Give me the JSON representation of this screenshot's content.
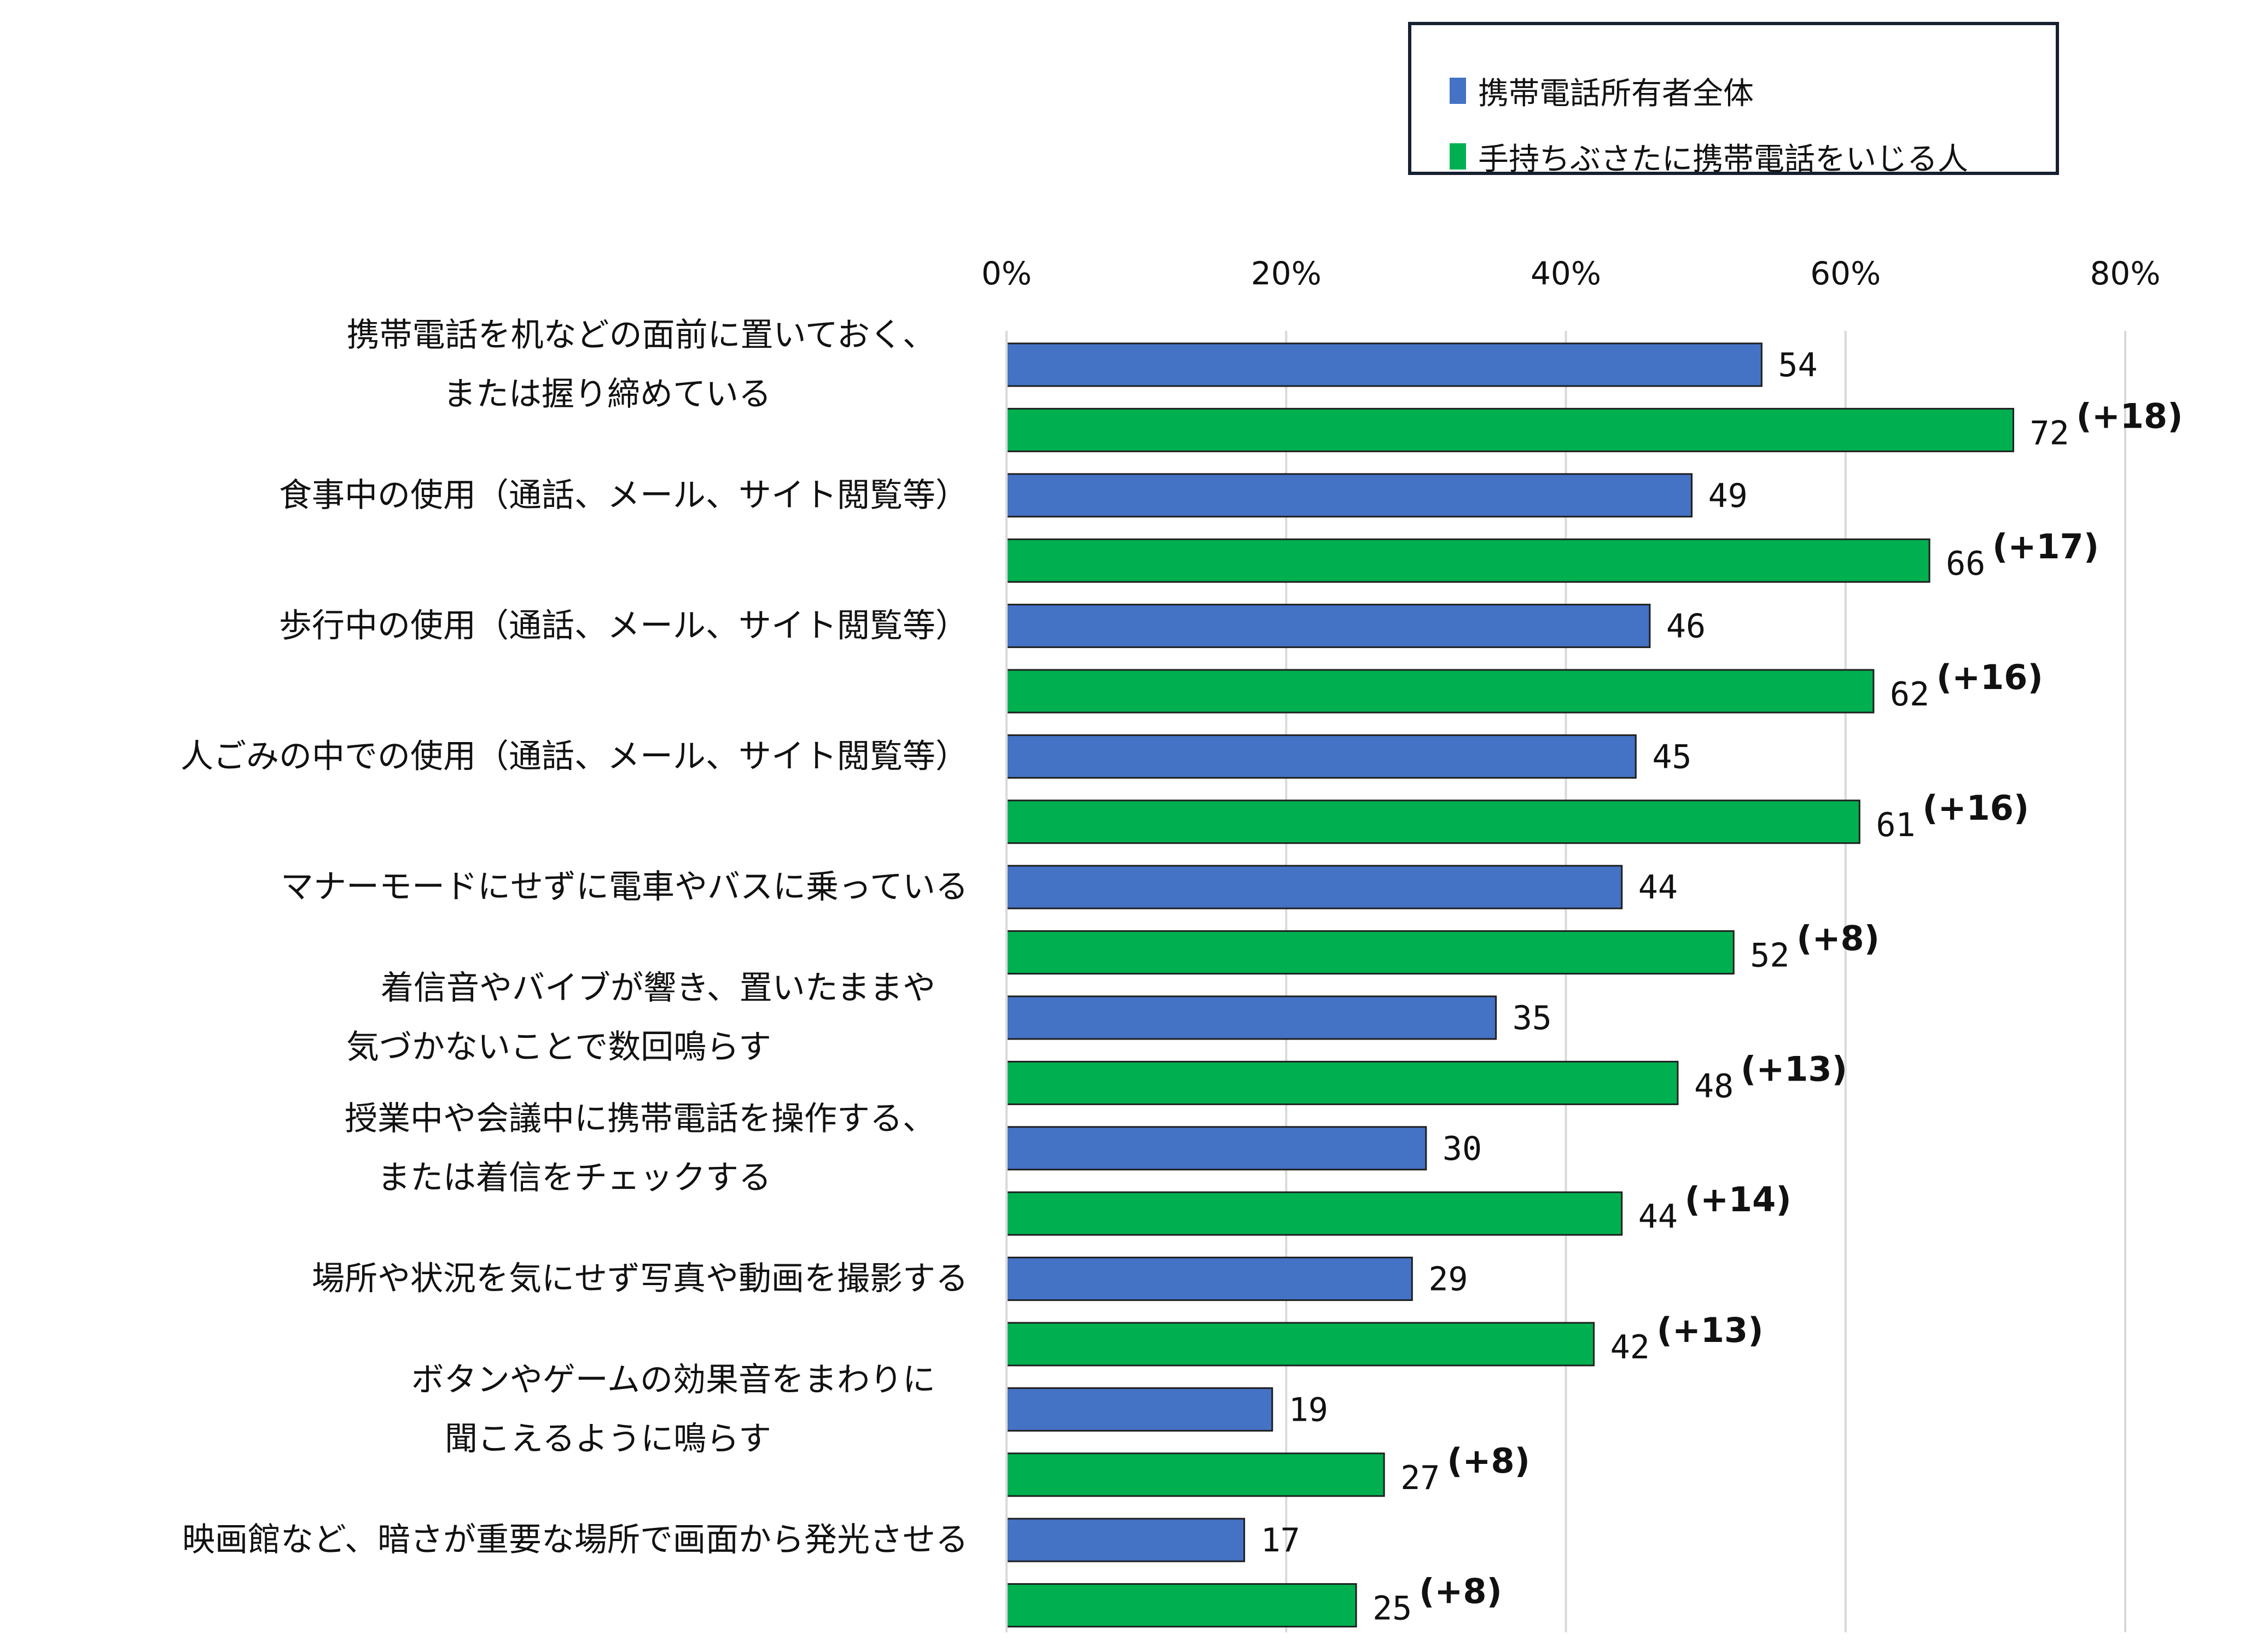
{
  "colors": {
    "series1": "#4472c4",
    "series2": "#00b050",
    "bar_border": "#1f1f1f",
    "grid": "#d9d9d9"
  },
  "legend": {
    "series1": "携帯電話所有者全体",
    "series2": "手持ちぶさたに携帯電話をいじる人"
  },
  "chart_data": {
    "type": "bar",
    "orientation": "horizontal",
    "xlim": [
      0,
      80
    ],
    "xticks": [
      "0%",
      "20%",
      "40%",
      "60%",
      "80%"
    ],
    "grid": true,
    "legend_position": "top-right",
    "categories": [
      [
        "携帯電話を机などの面前に置いておく、",
        "または握り締めている"
      ],
      [
        "食事中の使用（通話、メール、サイト閲覧等）"
      ],
      [
        "歩行中の使用（通話、メール、サイト閲覧等）"
      ],
      [
        "人ごみの中での使用（通話、メール、サイト閲覧等）"
      ],
      [
        "マナーモードにせずに電車やバスに乗っている"
      ],
      [
        "着信音やバイブが響き、置いたままや",
        "気づかないことで数回鳴らす"
      ],
      [
        "授業中や会議中に携帯電話を操作する、",
        "または着信をチェックする"
      ],
      [
        "場所や状況を気にせず写真や動画を撮影する"
      ],
      [
        "ボタンやゲームの効果音をまわりに",
        "聞こえるように鳴らす"
      ],
      [
        "映画館など、暗さが重要な場所で画面から発光させる"
      ]
    ],
    "series": [
      {
        "name": "携帯電話所有者全体",
        "values": [
          54,
          49,
          46,
          45,
          44,
          35,
          30,
          29,
          19,
          17
        ]
      },
      {
        "name": "手持ちぶさたに携帯電話をいじる人",
        "values": [
          72,
          66,
          62,
          61,
          52,
          48,
          44,
          42,
          27,
          25
        ],
        "diffs": [
          "(+18)",
          "(+17)",
          "(+16)",
          "(+16)",
          "(+8)",
          "(+13)",
          "(+14)",
          "(+13)",
          "(+8)",
          "(+8)"
        ]
      }
    ]
  }
}
